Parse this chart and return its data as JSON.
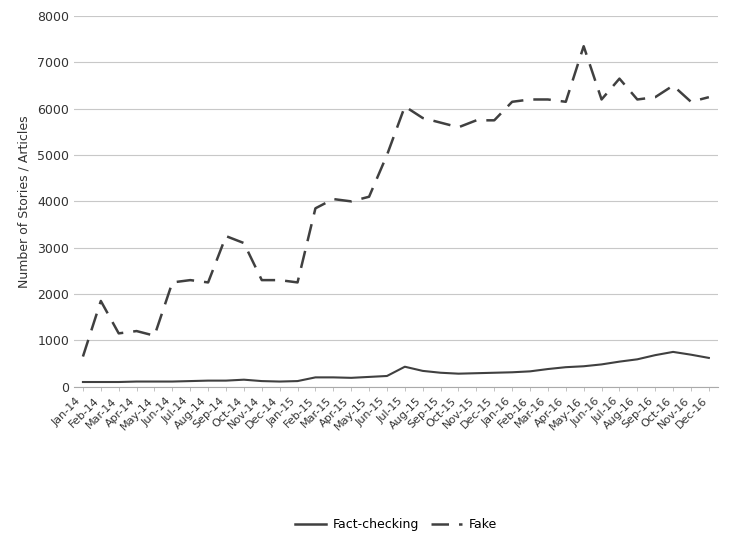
{
  "labels": [
    "Jan-14",
    "Feb-14",
    "Mar-14",
    "Apr-14",
    "May-14",
    "Jun-14",
    "Jul-14",
    "Aug-14",
    "Sep-14",
    "Oct-14",
    "Nov-14",
    "Dec-14",
    "Jan-15",
    "Feb-15",
    "Mar-15",
    "Apr-15",
    "May-15",
    "Jun-15",
    "Jul-15",
    "Aug-15",
    "Sep-15",
    "Oct-15",
    "Nov-15",
    "Dec-15",
    "Jan-16",
    "Feb-16",
    "Mar-16",
    "Apr-16",
    "May-16",
    "Jun-16",
    "Jul-16",
    "Aug-16",
    "Sep-16",
    "Oct-16",
    "Nov-16",
    "Dec-16"
  ],
  "fact_checking": [
    100,
    100,
    100,
    110,
    110,
    110,
    120,
    130,
    130,
    150,
    120,
    110,
    120,
    200,
    200,
    190,
    210,
    230,
    430,
    340,
    300,
    280,
    290,
    300,
    310,
    330,
    380,
    420,
    440,
    480,
    540,
    590,
    680,
    750,
    690,
    620
  ],
  "fake": [
    650,
    1850,
    1150,
    1200,
    1100,
    2250,
    2300,
    2250,
    3250,
    3100,
    2300,
    2300,
    2250,
    3850,
    4050,
    4000,
    4100,
    5000,
    6050,
    5800,
    5700,
    5600,
    5750,
    5750,
    6150,
    6200,
    6200,
    6150,
    7350,
    6200,
    6650,
    6200,
    6250,
    6500,
    6150,
    6250
  ],
  "ylabel": "Number of Stories / Articles",
  "ylim": [
    0,
    8000
  ],
  "yticks": [
    0,
    1000,
    2000,
    3000,
    4000,
    5000,
    6000,
    7000,
    8000
  ],
  "legend_fact": "Fact-checking",
  "legend_fake": "Fake",
  "line_color": "#404040",
  "bg_color": "#ffffff",
  "grid_color": "#c8c8c8"
}
